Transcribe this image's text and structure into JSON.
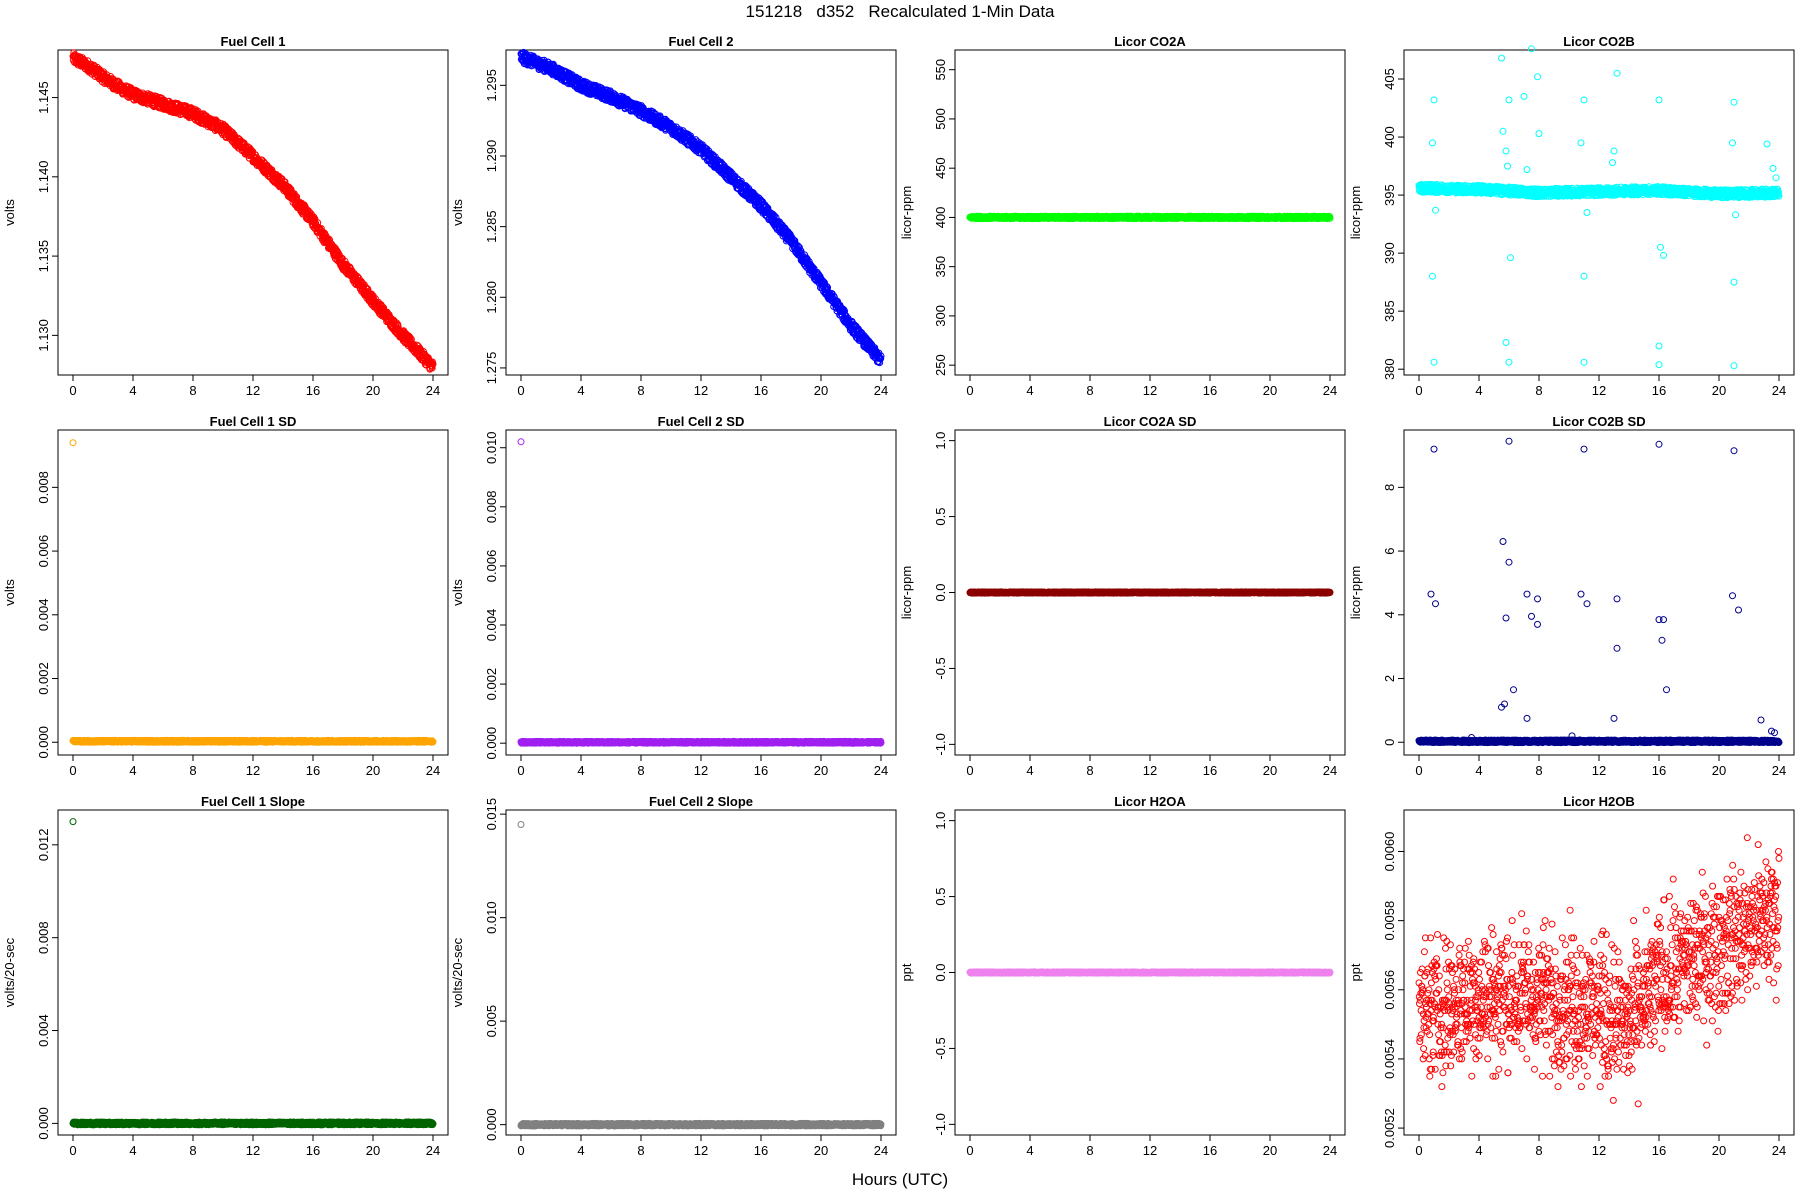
{
  "title": "151218   d352   Recalculated 1-Min Data",
  "xlabel": "Hours (UTC)",
  "chart_data": [
    {
      "type": "scatter",
      "title": "Fuel Cell 1",
      "ylabel": "volts",
      "color": "#ff0000",
      "xlim": [
        0,
        24
      ],
      "ylim": [
        1.1275,
        1.148
      ],
      "xticks": [
        0,
        4,
        8,
        12,
        16,
        20,
        24
      ],
      "yticks": [
        1.13,
        1.135,
        1.14,
        1.145
      ],
      "ytick_labels": [
        "1.130",
        "1.135",
        "1.140",
        "1.145"
      ],
      "series": [
        {
          "mode": "band",
          "points": [
            [
              0,
              1.1475
            ],
            [
              1,
              1.147
            ],
            [
              2,
              1.1463
            ],
            [
              3,
              1.1457
            ],
            [
              4,
              1.1452
            ],
            [
              6,
              1.1446
            ],
            [
              8,
              1.144
            ],
            [
              10,
              1.143
            ],
            [
              12,
              1.1413
            ],
            [
              14,
              1.1395
            ],
            [
              16,
              1.1372
            ],
            [
              18,
              1.1345
            ],
            [
              20,
              1.1322
            ],
            [
              22,
              1.13
            ],
            [
              24,
              1.128
            ]
          ],
          "spread": 0.00035
        }
      ]
    },
    {
      "type": "scatter",
      "title": "Fuel Cell 2",
      "ylabel": "volts",
      "color": "#0000ff",
      "xlim": [
        0,
        24
      ],
      "ylim": [
        1.2745,
        1.2975
      ],
      "xticks": [
        0,
        4,
        8,
        12,
        16,
        20,
        24
      ],
      "yticks": [
        1.275,
        1.28,
        1.285,
        1.29,
        1.295
      ],
      "ytick_labels": [
        "1.275",
        "1.280",
        "1.285",
        "1.290",
        "1.295"
      ],
      "series": [
        {
          "mode": "band",
          "points": [
            [
              0,
              1.297
            ],
            [
              2,
              1.2962
            ],
            [
              4,
              1.295
            ],
            [
              6,
              1.2942
            ],
            [
              8,
              1.2932
            ],
            [
              10,
              1.292
            ],
            [
              12,
              1.2905
            ],
            [
              14,
              1.2885
            ],
            [
              16,
              1.2865
            ],
            [
              18,
              1.284
            ],
            [
              20,
              1.281
            ],
            [
              22,
              1.278
            ],
            [
              24,
              1.2755
            ]
          ],
          "spread": 0.0004
        }
      ]
    },
    {
      "type": "scatter",
      "title": "Licor CO2A",
      "ylabel": "licor-ppm",
      "color": "#00ff00",
      "xlim": [
        0,
        24
      ],
      "ylim": [
        240,
        570
      ],
      "xticks": [
        0,
        4,
        8,
        12,
        16,
        20,
        24
      ],
      "yticks": [
        250,
        300,
        350,
        400,
        450,
        500,
        550
      ],
      "ytick_labels": [
        "250",
        "300",
        "350",
        "400",
        "450",
        "500",
        "550"
      ],
      "series": [
        {
          "mode": "band",
          "points": [
            [
              0,
              400
            ],
            [
              24,
              400
            ]
          ],
          "spread": 1.2
        }
      ]
    },
    {
      "type": "scatter",
      "title": "Licor CO2B",
      "ylabel": "licor-ppm",
      "color": "#00ffff",
      "xlim": [
        0,
        24
      ],
      "ylim": [
        379.5,
        407.5
      ],
      "xticks": [
        0,
        4,
        8,
        12,
        16,
        20,
        24
      ],
      "yticks": [
        380,
        385,
        390,
        395,
        400,
        405
      ],
      "ytick_labels": [
        "380",
        "385",
        "390",
        "395",
        "400",
        "405"
      ],
      "series": [
        {
          "mode": "band",
          "points": [
            [
              0,
              395.6
            ],
            [
              4,
              395.5
            ],
            [
              8,
              395.2
            ],
            [
              12,
              395.3
            ],
            [
              16,
              395.4
            ],
            [
              20,
              395.1
            ],
            [
              24,
              395.2
            ]
          ],
          "spread": 0.35
        },
        {
          "mode": "points",
          "points": [
            [
              1.0,
              403.2
            ],
            [
              0.9,
              399.5
            ],
            [
              1.1,
              393.7
            ],
            [
              0.9,
              388.0
            ],
            [
              1.0,
              380.6
            ],
            [
              5.6,
              400.5
            ],
            [
              5.8,
              398.8
            ],
            [
              5.9,
              397.5
            ],
            [
              6.0,
              403.2
            ],
            [
              6.1,
              389.6
            ],
            [
              5.8,
              382.3
            ],
            [
              6.0,
              380.6
            ],
            [
              5.5,
              406.8
            ],
            [
              7.5,
              407.6
            ],
            [
              7.9,
              405.2
            ],
            [
              7.0,
              403.5
            ],
            [
              8.0,
              400.3
            ],
            [
              7.2,
              397.2
            ],
            [
              11.0,
              403.2
            ],
            [
              10.8,
              399.5
            ],
            [
              11.2,
              393.5
            ],
            [
              11.0,
              388.0
            ],
            [
              11.0,
              380.6
            ],
            [
              13.2,
              405.5
            ],
            [
              13.0,
              398.8
            ],
            [
              12.9,
              397.8
            ],
            [
              16.0,
              403.2
            ],
            [
              16.1,
              390.5
            ],
            [
              16.3,
              389.8
            ],
            [
              16.0,
              382.0
            ],
            [
              16.0,
              380.4
            ],
            [
              21.0,
              403.0
            ],
            [
              20.9,
              399.5
            ],
            [
              21.1,
              393.3
            ],
            [
              21.0,
              387.5
            ],
            [
              21.0,
              380.3
            ],
            [
              23.2,
              399.4
            ],
            [
              23.6,
              397.3
            ],
            [
              23.8,
              396.5
            ]
          ]
        }
      ]
    },
    {
      "type": "scatter",
      "title": "Fuel Cell 1 SD",
      "ylabel": "volts",
      "color": "#ffa500",
      "xlim": [
        0,
        24
      ],
      "ylim": [
        -0.0004,
        0.0098
      ],
      "xticks": [
        0,
        4,
        8,
        12,
        16,
        20,
        24
      ],
      "yticks": [
        0,
        0.002,
        0.004,
        0.006,
        0.008
      ],
      "ytick_labels": [
        "0.000",
        "0.002",
        "0.004",
        "0.006",
        "0.008"
      ],
      "series": [
        {
          "mode": "band",
          "points": [
            [
              0,
              3e-05
            ],
            [
              24,
              3e-05
            ]
          ],
          "spread": 3e-05
        },
        {
          "mode": "points",
          "points": [
            [
              0,
              0.0094
            ]
          ]
        }
      ]
    },
    {
      "type": "scatter",
      "title": "Fuel Cell 2 SD",
      "ylabel": "volts",
      "color": "#a020f0",
      "xlim": [
        0,
        24
      ],
      "ylim": [
        -0.0004,
        0.0106
      ],
      "xticks": [
        0,
        4,
        8,
        12,
        16,
        20,
        24
      ],
      "yticks": [
        0,
        0.002,
        0.004,
        0.006,
        0.008,
        0.01
      ],
      "ytick_labels": [
        "0.000",
        "0.002",
        "0.004",
        "0.006",
        "0.008",
        "0.010"
      ],
      "series": [
        {
          "mode": "band",
          "points": [
            [
              0,
              3e-05
            ],
            [
              24,
              3e-05
            ]
          ],
          "spread": 3e-05
        },
        {
          "mode": "points",
          "points": [
            [
              0,
              0.0102
            ]
          ]
        }
      ]
    },
    {
      "type": "scatter",
      "title": "Licor CO2A SD",
      "ylabel": "licor-ppm",
      "color": "#8b0000",
      "xlim": [
        0,
        24
      ],
      "ylim": [
        -1.07,
        1.07
      ],
      "xticks": [
        0,
        4,
        8,
        12,
        16,
        20,
        24
      ],
      "yticks": [
        -1.0,
        -0.5,
        0,
        0.5,
        1.0
      ],
      "ytick_labels": [
        "-1.0",
        "-0.5",
        "0.0",
        "0.5",
        "1.0"
      ],
      "series": [
        {
          "mode": "band",
          "points": [
            [
              0,
              0
            ],
            [
              24,
              0
            ]
          ],
          "spread": 0.004
        }
      ]
    },
    {
      "type": "scatter",
      "title": "Licor CO2B SD",
      "ylabel": "licor-ppm",
      "color": "#00008b",
      "xlim": [
        0,
        24
      ],
      "ylim": [
        -0.4,
        9.8
      ],
      "xticks": [
        0,
        4,
        8,
        12,
        16,
        20,
        24
      ],
      "yticks": [
        0,
        2,
        4,
        6,
        8
      ],
      "ytick_labels": [
        "0",
        "2",
        "4",
        "6",
        "8"
      ],
      "series": [
        {
          "mode": "band",
          "points": [
            [
              0,
              0.03
            ],
            [
              24,
              0.03
            ]
          ],
          "spread": 0.04
        },
        {
          "mode": "points",
          "points": [
            [
              1.0,
              9.2
            ],
            [
              0.8,
              4.65
            ],
            [
              1.1,
              4.35
            ],
            [
              5.6,
              6.3
            ],
            [
              5.8,
              3.9
            ],
            [
              6.0,
              5.65
            ],
            [
              6.3,
              1.65
            ],
            [
              5.7,
              1.2
            ],
            [
              5.5,
              1.1
            ],
            [
              7.2,
              4.65
            ],
            [
              7.5,
              3.95
            ],
            [
              7.9,
              4.5
            ],
            [
              7.9,
              3.7
            ],
            [
              7.2,
              0.75
            ],
            [
              6.0,
              9.45
            ],
            [
              11.0,
              9.2
            ],
            [
              10.8,
              4.65
            ],
            [
              11.2,
              4.35
            ],
            [
              13.2,
              4.5
            ],
            [
              13.2,
              2.95
            ],
            [
              13.0,
              0.75
            ],
            [
              16.0,
              9.35
            ],
            [
              16.0,
              3.85
            ],
            [
              16.3,
              3.85
            ],
            [
              16.2,
              3.2
            ],
            [
              16.5,
              1.65
            ],
            [
              21.0,
              9.15
            ],
            [
              20.9,
              4.6
            ],
            [
              21.3,
              4.15
            ],
            [
              22.8,
              0.7
            ],
            [
              23.5,
              0.35
            ],
            [
              23.7,
              0.3
            ],
            [
              3.5,
              0.15
            ],
            [
              10.2,
              0.2
            ]
          ]
        }
      ]
    },
    {
      "type": "scatter",
      "title": "Fuel Cell 1 Slope",
      "ylabel": "volts/20-sec",
      "color": "#006400",
      "xlim": [
        0,
        24
      ],
      "ylim": [
        -0.0005,
        0.0135
      ],
      "xticks": [
        0,
        4,
        8,
        12,
        16,
        20,
        24
      ],
      "yticks": [
        0,
        0.004,
        0.008,
        0.012
      ],
      "ytick_labels": [
        "0.000",
        "0.004",
        "0.008",
        "0.012"
      ],
      "series": [
        {
          "mode": "band",
          "points": [
            [
              0,
              0
            ],
            [
              24,
              0
            ]
          ],
          "spread": 6e-05
        },
        {
          "mode": "points",
          "points": [
            [
              0,
              0.013
            ]
          ]
        }
      ]
    },
    {
      "type": "scatter",
      "title": "Fuel Cell 2 Slope",
      "ylabel": "volts/20-sec",
      "color": "#808080",
      "xlim": [
        0,
        24
      ],
      "ylim": [
        -0.0005,
        0.0152
      ],
      "xticks": [
        0,
        4,
        8,
        12,
        16,
        20,
        24
      ],
      "yticks": [
        0,
        0.005,
        0.01,
        0.015
      ],
      "ytick_labels": [
        "0.000",
        "0.005",
        "0.010",
        "0.015"
      ],
      "series": [
        {
          "mode": "band",
          "points": [
            [
              0,
              0
            ],
            [
              24,
              0
            ]
          ],
          "spread": 6e-05
        },
        {
          "mode": "points",
          "points": [
            [
              0,
              0.0145
            ]
          ]
        }
      ]
    },
    {
      "type": "scatter",
      "title": "Licor H2OA",
      "ylabel": "ppt",
      "color": "#ee82ee",
      "xlim": [
        0,
        24
      ],
      "ylim": [
        -1.07,
        1.07
      ],
      "xticks": [
        0,
        4,
        8,
        12,
        16,
        20,
        24
      ],
      "yticks": [
        -1.0,
        -0.5,
        0,
        0.5,
        1.0
      ],
      "ytick_labels": [
        "-1.0",
        "-0.5",
        "0.0",
        "0.5",
        "1.0"
      ],
      "series": [
        {
          "mode": "band",
          "points": [
            [
              0,
              0
            ],
            [
              24,
              0
            ]
          ],
          "spread": 0.004
        }
      ]
    },
    {
      "type": "scatter",
      "title": "Licor H2OB",
      "ylabel": "ppt",
      "color": "#ff0000",
      "xlim": [
        0,
        24
      ],
      "ylim": [
        0.00518,
        0.00612
      ],
      "xticks": [
        0,
        4,
        8,
        12,
        16,
        20,
        24
      ],
      "yticks": [
        0.0052,
        0.0054,
        0.0056,
        0.0058,
        0.006
      ],
      "ytick_labels": [
        "0.0052",
        "0.0054",
        "0.0056",
        "0.0058",
        "0.0060"
      ],
      "series": [
        {
          "mode": "noise",
          "points": [
            [
              0,
              0.00553
            ],
            [
              4,
              0.00558
            ],
            [
              8,
              0.00558
            ],
            [
              12,
              0.00555
            ],
            [
              14,
              0.0055
            ],
            [
              16,
              0.00563
            ],
            [
              20,
              0.00573
            ],
            [
              24,
              0.00582
            ]
          ],
          "spread": 0.00022,
          "step": 1e-05
        }
      ]
    }
  ]
}
